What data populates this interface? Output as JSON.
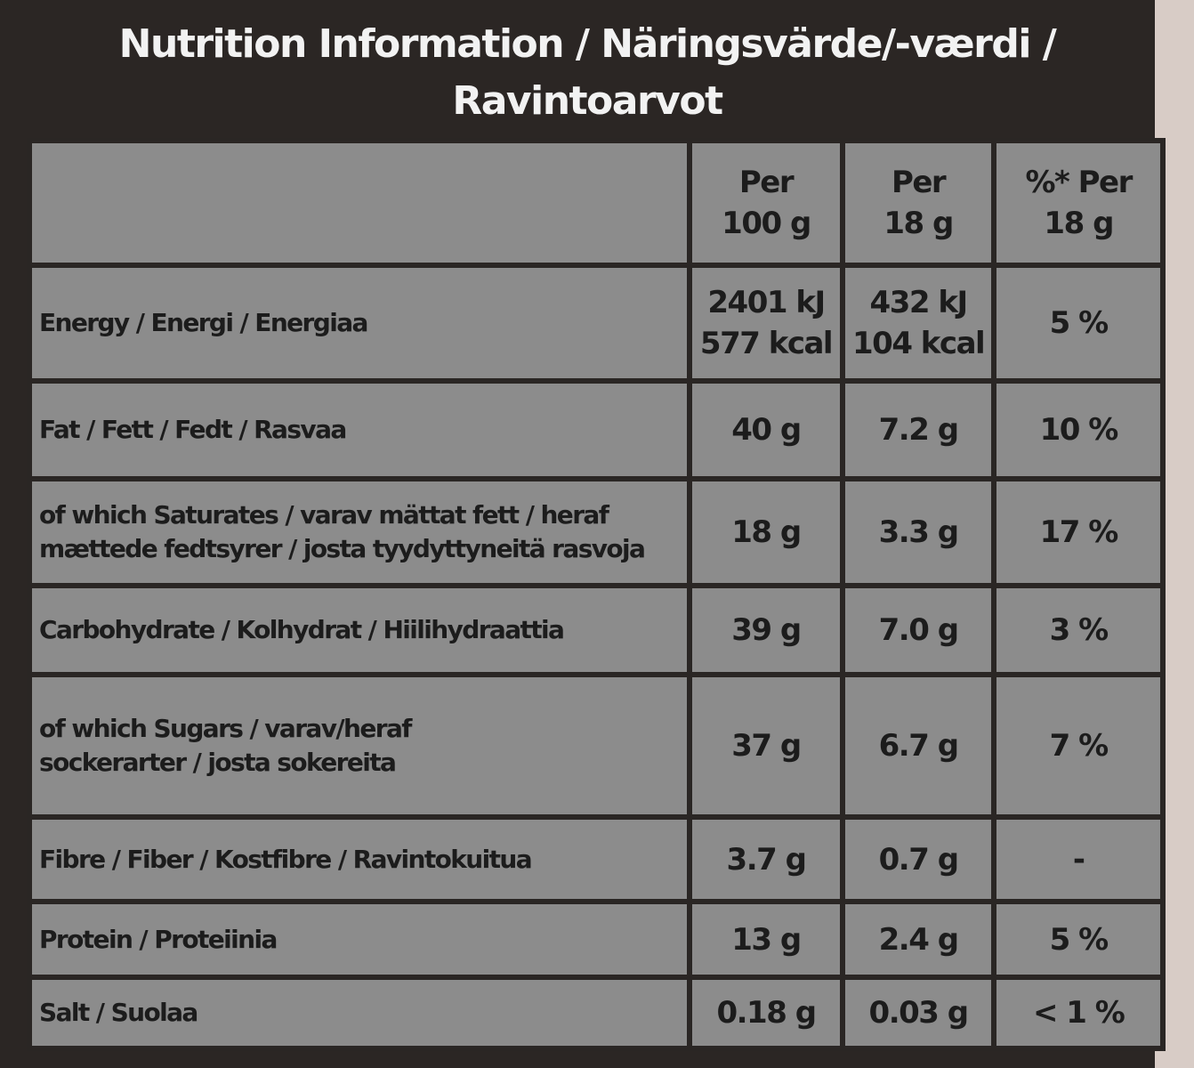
{
  "title_lines": [
    "Nutrition Information / Näringsvärde/-værdi /",
    "Ravintoarvot"
  ],
  "table": {
    "header": [
      [
        "Per",
        "100 g"
      ],
      [
        "Per",
        "18 g"
      ],
      [
        "%* Per",
        "18 g"
      ]
    ],
    "rows": [
      {
        "label": [
          "Energy / Energi / Energiaa"
        ],
        "values": [
          [
            "2401 kJ",
            "577 kcal"
          ],
          [
            "432 kJ",
            "104 kcal"
          ],
          [
            "5 %"
          ]
        ]
      },
      {
        "label": [
          "Fat / Fett / Fedt / Rasvaa"
        ],
        "values": [
          [
            "40 g"
          ],
          [
            "7.2 g"
          ],
          [
            "10 %"
          ]
        ]
      },
      {
        "label": [
          "of which Saturates / varav mättat fett / heraf",
          "mættede fedtsyrer / josta tyydyttyneitä rasvoja"
        ],
        "values": [
          [
            "18 g"
          ],
          [
            "3.3 g"
          ],
          [
            "17 %"
          ]
        ]
      },
      {
        "label": [
          "Carbohydrate / Kolhydrat / Hiilihydraattia"
        ],
        "values": [
          [
            "39 g"
          ],
          [
            "7.0 g"
          ],
          [
            "3 %"
          ]
        ]
      },
      {
        "label": [
          "of which Sugars / varav/heraf",
          "sockerarter / josta sokereita"
        ],
        "values": [
          [
            "37 g"
          ],
          [
            "6.7 g"
          ],
          [
            "7 %"
          ]
        ]
      },
      {
        "label": [
          "Fibre / Fiber / Kostfibre / Ravintokuitua"
        ],
        "values": [
          [
            "3.7 g"
          ],
          [
            "0.7 g"
          ],
          [
            "-"
          ]
        ]
      },
      {
        "label": [
          "Protein / Proteiinia"
        ],
        "values": [
          [
            "13 g"
          ],
          [
            "2.4 g"
          ],
          [
            "5 %"
          ]
        ]
      },
      {
        "label": [
          "Salt / Suolaa"
        ],
        "values": [
          [
            "0.18 g"
          ],
          [
            "0.03 g"
          ],
          [
            "< 1 %"
          ]
        ]
      }
    ]
  }
}
